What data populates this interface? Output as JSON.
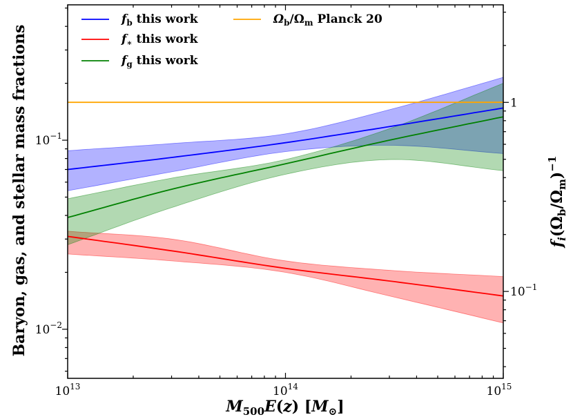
{
  "chart_data": {
    "type": "line",
    "xscale": "log",
    "yscale": "log",
    "xlim": [
      10000000000000.0,
      1000000000000000.0
    ],
    "ylim": [
      0.0055,
      0.52
    ],
    "right_ylim": [
      0.0347,
      3.28
    ],
    "xlabel": "M500E(z) [M⊙]",
    "ylabel": "Baryon, gas, and stellar mass fractions",
    "right_ylabel": "fi(Ωb/Ωm)−1",
    "x_ticks": [
      {
        "value": 10000000000000.0,
        "base": "10",
        "exp": "13"
      },
      {
        "value": 100000000000000.0,
        "base": "10",
        "exp": "14"
      },
      {
        "value": 1000000000000000.0,
        "base": "10",
        "exp": "15"
      }
    ],
    "y_ticks": [
      {
        "value": 0.01,
        "base": "10",
        "exp": "−2"
      },
      {
        "value": 0.1,
        "base": "10",
        "exp": "−1"
      }
    ],
    "right_ticks": [
      {
        "value": 1,
        "base": "1",
        "exp": ""
      },
      {
        "value": 0.1,
        "base": "10",
        "exp": "−1"
      }
    ],
    "legend_location": "upper-left",
    "series": [
      {
        "name": "fb this work",
        "legend_main": "f",
        "legend_sub": "b",
        "legend_rest": " this work",
        "color": "#0000ff",
        "fill": "#0000ff",
        "x": [
          10000000000000.0,
          30000000000000.0,
          100000000000000.0,
          300000000000000.0,
          1000000000000000.0
        ],
        "values": [
          0.07,
          0.081,
          0.097,
          0.118,
          0.148
        ],
        "lower": [
          0.054,
          0.068,
          0.087,
          0.094,
          0.085
        ],
        "upper": [
          0.088,
          0.096,
          0.108,
          0.145,
          0.215
        ]
      },
      {
        "name": "f* this work",
        "legend_main": "f",
        "legend_sub": "∗",
        "legend_rest": " this work",
        "color": "#ff0000",
        "fill": "#ff0000",
        "x": [
          10000000000000.0,
          30000000000000.0,
          100000000000000.0,
          300000000000000.0,
          1000000000000000.0
        ],
        "values": [
          0.031,
          0.026,
          0.021,
          0.018,
          0.015
        ],
        "lower": [
          0.025,
          0.023,
          0.02,
          0.015,
          0.0108
        ],
        "upper": [
          0.033,
          0.03,
          0.023,
          0.0205,
          0.019
        ]
      },
      {
        "name": "fg this work",
        "legend_main": "f",
        "legend_sub": "g",
        "legend_rest": " this work",
        "color": "#008000",
        "fill": "#008000",
        "x": [
          10000000000000.0,
          30000000000000.0,
          100000000000000.0,
          300000000000000.0,
          1000000000000000.0
        ],
        "values": [
          0.039,
          0.055,
          0.075,
          0.1,
          0.133
        ],
        "lower": [
          0.028,
          0.044,
          0.066,
          0.079,
          0.069
        ],
        "upper": [
          0.049,
          0.063,
          0.079,
          0.115,
          0.2
        ]
      },
      {
        "name": "Ωb/Ωm Planck 20",
        "legend_main": "Ω",
        "legend_sub": "b",
        "legend_mid": "/Ω",
        "legend_sub2": "m",
        "legend_rest": " Planck 20",
        "color": "#ffa500",
        "x": [
          10000000000000.0,
          1000000000000000.0
        ],
        "values": [
          0.1586,
          0.1586
        ]
      }
    ]
  }
}
